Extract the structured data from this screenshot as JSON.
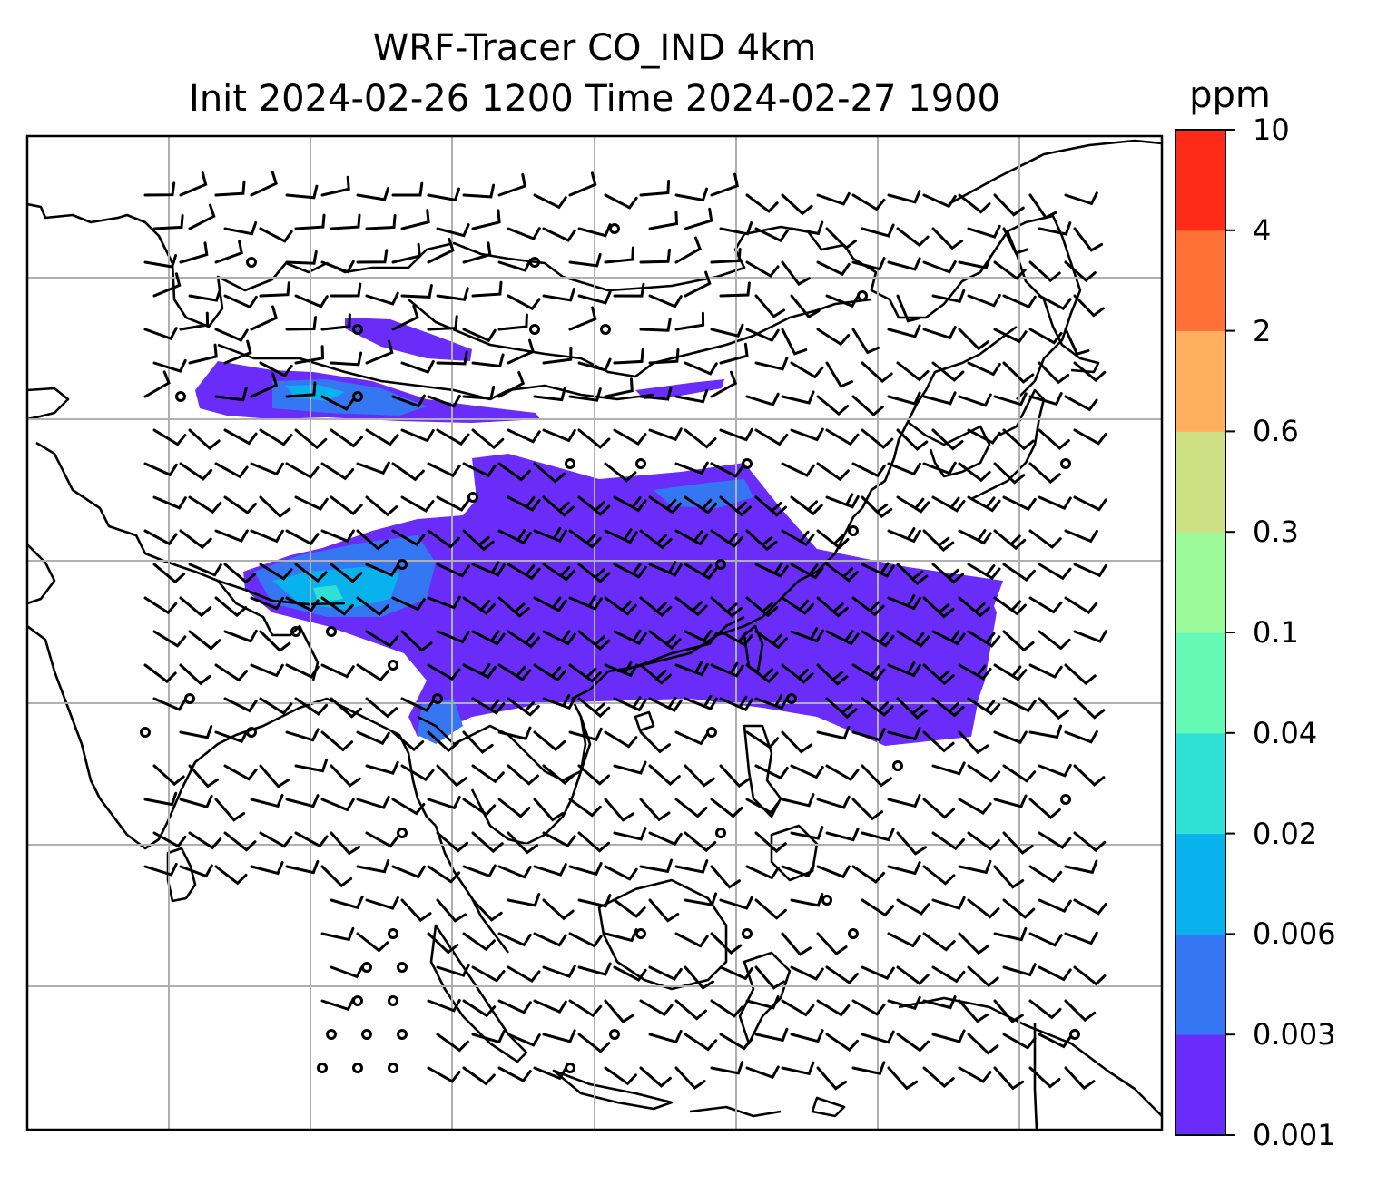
{
  "title": {
    "line1": "WRF-Tracer CO_IND 4km",
    "line2": "Init 2024-02-26 1200 Time 2024-02-27 1900"
  },
  "colorbar": {
    "unit": "ppm",
    "levels": [
      "0.001",
      "0.003",
      "0.006",
      "0.02",
      "0.04",
      "0.1",
      "0.3",
      "0.6",
      "2",
      "4",
      "10"
    ],
    "colors": [
      "#6a2cf8",
      "#3576f2",
      "#08b2ec",
      "#2fe0d4",
      "#64f9b4",
      "#9bf998",
      "#cfe084",
      "#feb060",
      "#ff7137",
      "#ff2a18"
    ]
  },
  "map": {
    "coastline_color": "#000000",
    "grid_color": "#b0b0b0",
    "plume_colors": {
      "low": "#6a2cf8",
      "mid": "#3576f2",
      "high": "#08b2ec",
      "peak": "#2fe0d4"
    }
  }
}
